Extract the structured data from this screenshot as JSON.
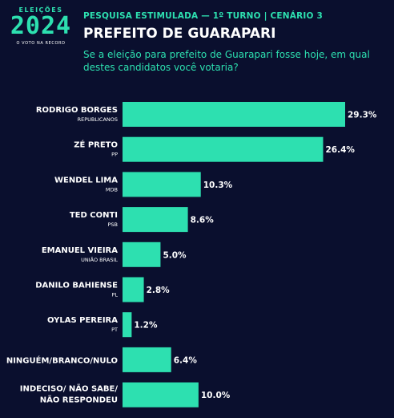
{
  "header": {
    "logo_top": "ELEIÇÕES",
    "logo_year": "2024",
    "logo_sub": "O VOTO NA RECORD",
    "kicker": "PESQUISA ESTIMULADA — 1º TURNO | CENÁRIO 3",
    "title": "PREFEITO DE GUARAPARI",
    "question": "Se a eleição para prefeito de Guarapari fosse hoje, em qual destes candidatos você votaria?"
  },
  "colors": {
    "bar": "#2de0b0",
    "background": "#0a0f2e",
    "accent": "#2de0b0"
  },
  "chart_data": {
    "type": "bar",
    "orientation": "horizontal",
    "categories": [
      {
        "name": [
          "RODRIGO BORGES"
        ],
        "party": "REPUBLICANOS"
      },
      {
        "name": [
          "ZÉ PRETO"
        ],
        "party": "PP"
      },
      {
        "name": [
          "WENDEL LIMA"
        ],
        "party": "MDB"
      },
      {
        "name": [
          "TED CONTI"
        ],
        "party": "PSB"
      },
      {
        "name": [
          "EMANUEL VIEIRA"
        ],
        "party": "UNIÃO BRASIL"
      },
      {
        "name": [
          "DANILO BAHIENSE"
        ],
        "party": "PL"
      },
      {
        "name": [
          "OYLAS PEREIRA"
        ],
        "party": "PT"
      },
      {
        "name": [
          "NINGUÉM/BRANCO/NULO"
        ],
        "party": ""
      },
      {
        "name": [
          "INDECISO/ NÃO SABE/",
          "NÃO RESPONDEU"
        ],
        "party": ""
      }
    ],
    "values": [
      29.3,
      26.4,
      10.3,
      8.6,
      5.0,
      2.8,
      1.2,
      6.4,
      10.0
    ],
    "labels": [
      "29.3%",
      "26.4%",
      "10.3%",
      "8.6%",
      "5.0%",
      "2.8%",
      "1.2%",
      "6.4%",
      "10.0%"
    ],
    "xlim": [
      0,
      29.3
    ]
  }
}
